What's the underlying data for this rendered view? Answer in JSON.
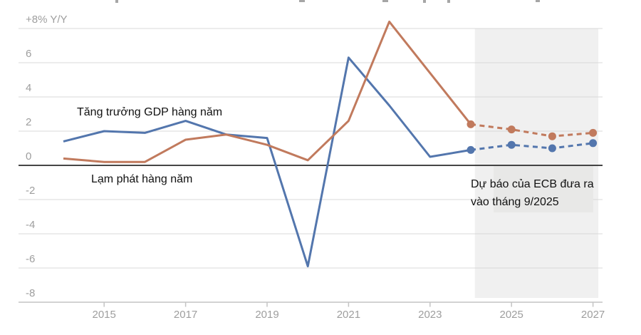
{
  "chart_data": {
    "type": "line",
    "x": [
      2014,
      2015,
      2016,
      2017,
      2018,
      2019,
      2020,
      2021,
      2022,
      2023,
      2024,
      2025,
      2026,
      2027
    ],
    "series": [
      {
        "id": "gdp",
        "name": "Tăng trưởng GDP hàng năm",
        "color": "#5376ad",
        "values": [
          1.4,
          2.0,
          1.9,
          2.6,
          1.8,
          1.6,
          -5.9,
          6.3,
          3.5,
          0.5,
          0.9,
          1.2,
          1.0,
          1.3
        ],
        "forecast_from": 2024
      },
      {
        "id": "inflation",
        "name": "Lạm phát hàng năm",
        "color": "#c17a5d",
        "values": [
          0.4,
          0.2,
          0.2,
          1.5,
          1.8,
          1.2,
          0.3,
          2.6,
          8.4,
          5.4,
          2.4,
          2.1,
          1.7,
          1.9
        ],
        "forecast_from": 2024
      }
    ],
    "ylim": [
      -8,
      8
    ],
    "y_ticks": [
      {
        "value": 8,
        "label": "+8% Y/Y"
      },
      {
        "value": 6,
        "label": "6"
      },
      {
        "value": 4,
        "label": "4"
      },
      {
        "value": 2,
        "label": "2"
      },
      {
        "value": 0,
        "label": "0"
      },
      {
        "value": -2,
        "label": "-2"
      },
      {
        "value": -4,
        "label": "-4"
      },
      {
        "value": -6,
        "label": "-6"
      },
      {
        "value": -8,
        "label": "-8"
      }
    ],
    "x_ticks": [
      "2015",
      "2017",
      "2019",
      "2021",
      "2023",
      "2025",
      "2027"
    ],
    "forecast_band": {
      "start_year": 2024.1,
      "end_year": 2027.13
    },
    "annotation": {
      "line1": "Dự báo của ECB đưa ra",
      "line2": "vào tháng 9/2025"
    },
    "grid": true,
    "legend": "inline-labels",
    "colors": {
      "forecast_band": "#f0f0f0",
      "annotation_box": "#e8e8e7",
      "gridline": "#d9d9d9",
      "zero_line": "#2b2b2b",
      "axis_line": "#c4c4c4",
      "axis_text": "#9e9e9e",
      "label_text": "#111111"
    }
  }
}
